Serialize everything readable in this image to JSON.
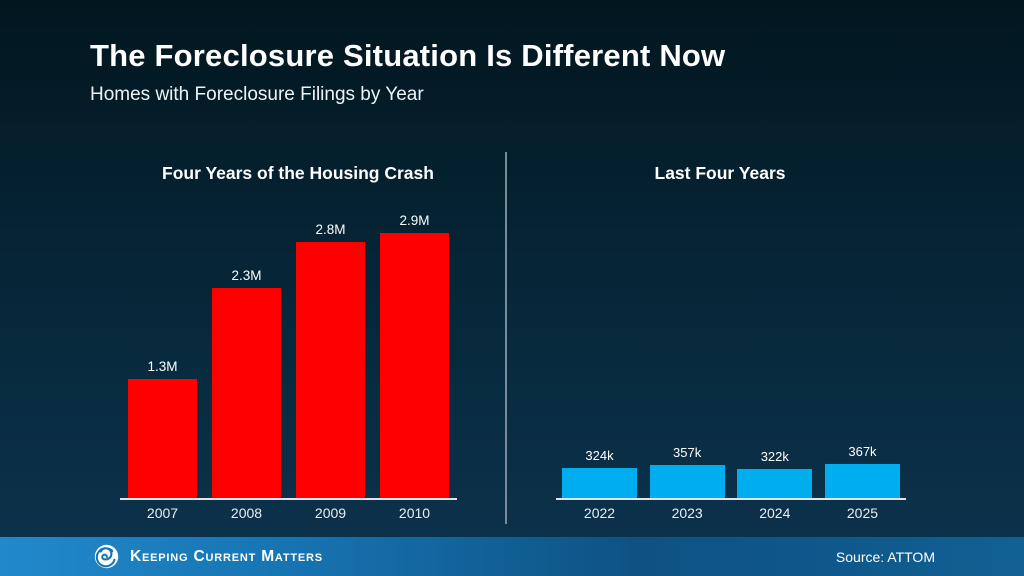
{
  "header": {
    "title": "The Foreclosure Situation Is Different Now",
    "subtitle": "Homes with Foreclosure Filings by Year"
  },
  "footer": {
    "brand": "Keeping Current Matters",
    "source": "Source: ATTOM"
  },
  "colors": {
    "crash_bar": "#ff0000",
    "recent_bar": "#00aeef",
    "background_top": "#02161f",
    "background_bottom": "#0c314b",
    "footer_blue": "#1774b2",
    "baseline": "#dde6ec",
    "divider": "#8596a2",
    "text": "#ffffff"
  },
  "chart_data": [
    {
      "type": "bar",
      "title": "Four Years of the Housing Crash",
      "categories": [
        "2007",
        "2008",
        "2009",
        "2010"
      ],
      "values": [
        1300000,
        2300000,
        2800000,
        2900000
      ],
      "value_labels": [
        "1.3M",
        "2.3M",
        "2.8M",
        "2.9M"
      ],
      "bar_color": "#ff0000",
      "xlabel": "",
      "ylabel": "",
      "ylim": [
        0,
        3000000
      ],
      "grid": false,
      "legend": "none"
    },
    {
      "type": "bar",
      "title": "Last Four Years",
      "categories": [
        "2022",
        "2023",
        "2024",
        "2025"
      ],
      "values": [
        324000,
        357000,
        322000,
        367000
      ],
      "value_labels": [
        "324k",
        "357k",
        "322k",
        "367k"
      ],
      "bar_color": "#00aeef",
      "xlabel": "",
      "ylabel": "",
      "ylim": [
        0,
        3000000
      ],
      "grid": false,
      "legend": "none"
    }
  ]
}
